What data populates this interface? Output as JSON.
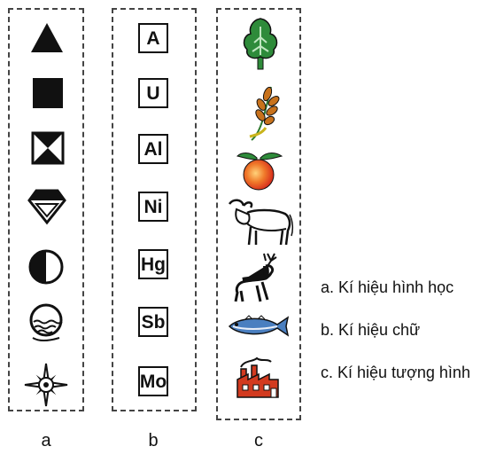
{
  "columns": {
    "a": {
      "label": "a",
      "icons": [
        "triangle-icon",
        "square-icon",
        "hourglass-icon",
        "diamond-icon",
        "half-circle-icon",
        "water-circle-icon",
        "compass-star-icon"
      ]
    },
    "b": {
      "label": "b",
      "letters": [
        "A",
        "U",
        "Al",
        "Ni",
        "Hg",
        "Sb",
        "Mo"
      ]
    },
    "c": {
      "label": "c",
      "icons": [
        "tree-icon",
        "wheat-icon",
        "fruit-icon",
        "buffalo-icon",
        "deer-icon",
        "fish-icon",
        "factory-icon"
      ]
    }
  },
  "legend": [
    "a. Kí hiệu hình học",
    "b. Kí hiệu chữ",
    "c. Kí hiệu tượng hình"
  ],
  "colors": {
    "symbol": "#111111",
    "tree": "#2e8b3a",
    "wheat": "#c8721c",
    "fruit": "#e8452a",
    "factory": "#d23a1f",
    "fish": "#4a7fc0"
  }
}
